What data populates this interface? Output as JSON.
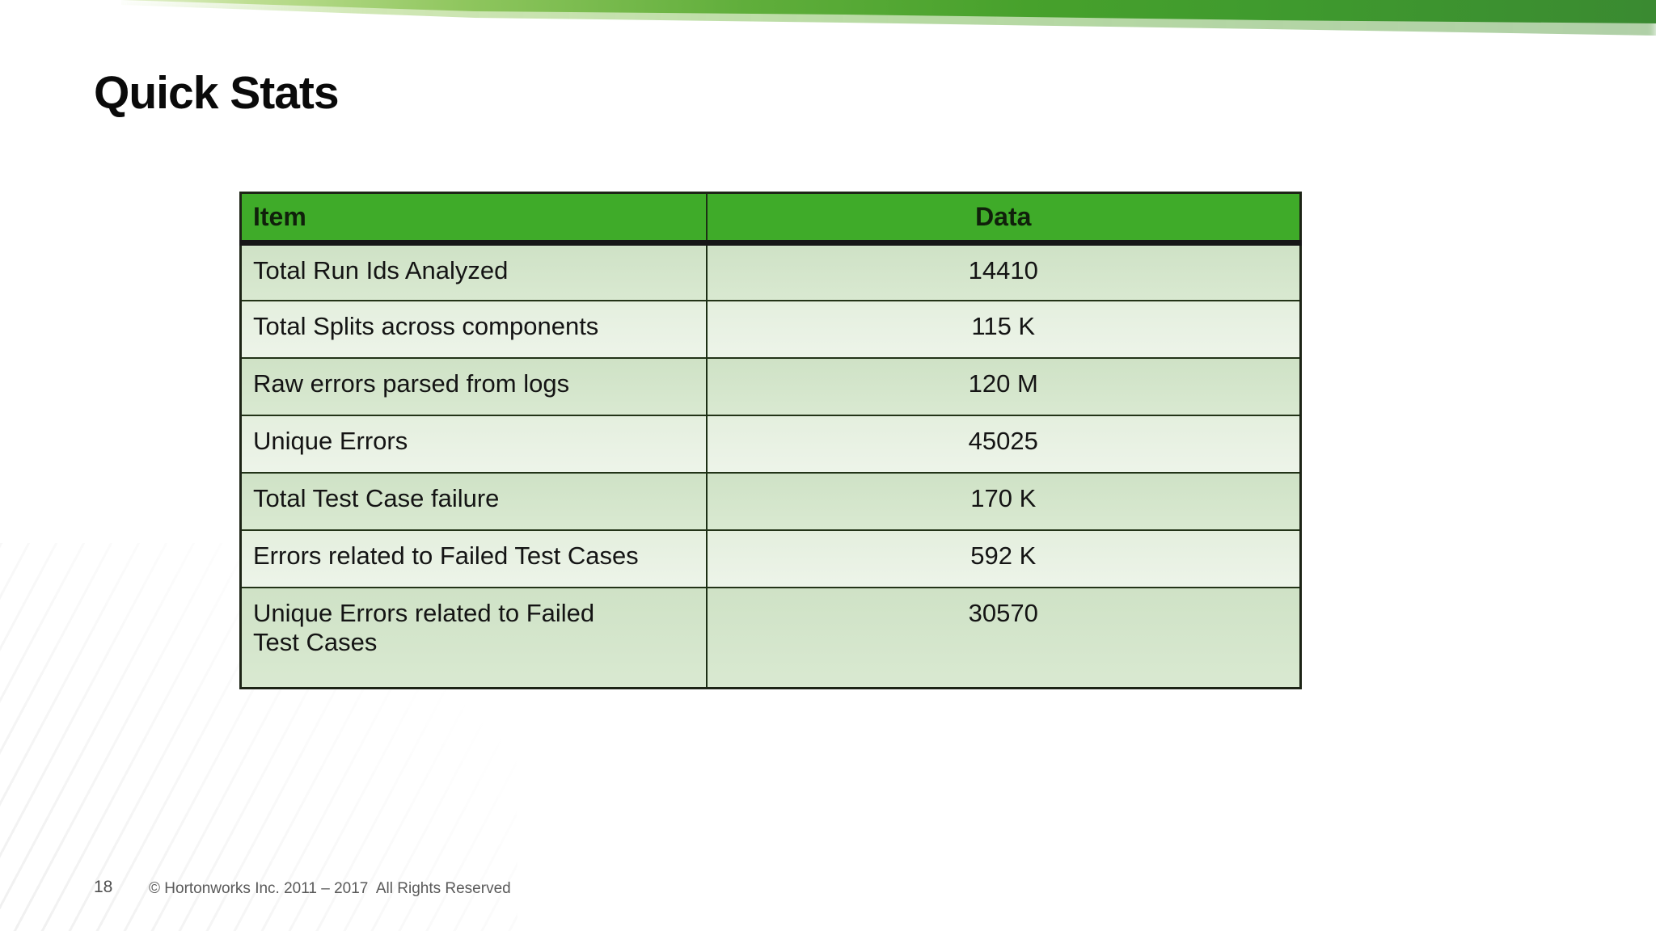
{
  "slide": {
    "title": "Quick Stats",
    "page_number": "18",
    "copyright": "© Hortonworks Inc. 2011 – 2017  All Rights Reserved"
  },
  "table": {
    "headers": [
      "Item",
      "Data"
    ],
    "rows": [
      {
        "item": "Total Run Ids Analyzed",
        "data": "14410"
      },
      {
        "item": "Total Splits across components",
        "data": "115 K"
      },
      {
        "item": "Raw errors parsed from logs",
        "data": "120 M"
      },
      {
        "item": "Unique Errors",
        "data": "45025"
      },
      {
        "item": "Total Test Case failure",
        "data": "170 K"
      },
      {
        "item": "Errors related to Failed Test Cases",
        "data": "592 K"
      },
      {
        "item": "Unique Errors related to Failed\nTest Cases",
        "data": "30570"
      }
    ]
  },
  "colors": {
    "header_green": "#3fab29",
    "band_green_dark": "#3a8a31",
    "band_green_light": "#bede92",
    "row_dark_green": "#d3e5cb",
    "row_light_green": "#e8f1e4",
    "border_dark": "#1d2416",
    "footer_gray": "#5a5a5a"
  }
}
